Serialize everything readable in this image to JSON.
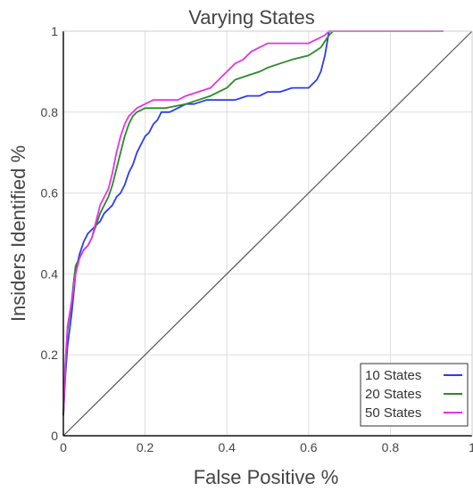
{
  "chart_data": {
    "type": "line",
    "title": "Varying States",
    "xlabel": "False Positive %",
    "ylabel": "Insiders Identified %",
    "xlim": [
      0,
      1
    ],
    "ylim": [
      0,
      1
    ],
    "xticks": [
      0,
      0.2,
      0.4,
      0.6,
      0.8,
      1
    ],
    "yticks": [
      0,
      0.2,
      0.4,
      0.6,
      0.8,
      1
    ],
    "xtick_labels": [
      "0",
      "0.2",
      "0.4",
      "0.6",
      "0.8",
      "1"
    ],
    "ytick_labels": [
      "0",
      "0.2",
      "0.4",
      "0.6",
      "0.8",
      "1"
    ],
    "grid": true,
    "legend_position": "bottom-right",
    "diagonal_reference": {
      "x": [
        0,
        1
      ],
      "y": [
        0,
        1
      ],
      "color": "#555555"
    },
    "series": [
      {
        "name": "10 States",
        "color": "#2b3ee6",
        "x": [
          0,
          0.005,
          0.01,
          0.02,
          0.025,
          0.03,
          0.035,
          0.04,
          0.05,
          0.06,
          0.07,
          0.08,
          0.09,
          0.1,
          0.11,
          0.12,
          0.13,
          0.14,
          0.15,
          0.16,
          0.17,
          0.18,
          0.19,
          0.2,
          0.21,
          0.22,
          0.23,
          0.24,
          0.26,
          0.28,
          0.3,
          0.32,
          0.35,
          0.38,
          0.4,
          0.42,
          0.45,
          0.48,
          0.5,
          0.53,
          0.56,
          0.6,
          0.62,
          0.63,
          0.64,
          0.645,
          0.65,
          0.66,
          0.7,
          0.8,
          0.93
        ],
        "y": [
          0.05,
          0.15,
          0.22,
          0.3,
          0.35,
          0.4,
          0.43,
          0.45,
          0.48,
          0.5,
          0.51,
          0.52,
          0.53,
          0.55,
          0.56,
          0.57,
          0.59,
          0.6,
          0.62,
          0.65,
          0.67,
          0.7,
          0.72,
          0.74,
          0.75,
          0.77,
          0.78,
          0.8,
          0.8,
          0.81,
          0.82,
          0.82,
          0.83,
          0.83,
          0.83,
          0.83,
          0.84,
          0.84,
          0.85,
          0.85,
          0.86,
          0.86,
          0.88,
          0.9,
          0.94,
          0.97,
          1.0,
          1.0,
          1.0,
          1.0,
          1.0
        ]
      },
      {
        "name": "20 States",
        "color": "#2a8a2a",
        "x": [
          0,
          0.005,
          0.01,
          0.02,
          0.025,
          0.03,
          0.04,
          0.05,
          0.06,
          0.07,
          0.08,
          0.09,
          0.1,
          0.11,
          0.12,
          0.13,
          0.14,
          0.15,
          0.16,
          0.17,
          0.18,
          0.2,
          0.22,
          0.25,
          0.3,
          0.33,
          0.36,
          0.38,
          0.4,
          0.42,
          0.45,
          0.48,
          0.5,
          0.53,
          0.56,
          0.6,
          0.63,
          0.65,
          0.66,
          0.7,
          0.8,
          0.93
        ],
        "y": [
          0.05,
          0.18,
          0.26,
          0.33,
          0.38,
          0.42,
          0.44,
          0.46,
          0.47,
          0.49,
          0.52,
          0.55,
          0.57,
          0.59,
          0.62,
          0.66,
          0.7,
          0.74,
          0.77,
          0.79,
          0.8,
          0.81,
          0.81,
          0.81,
          0.82,
          0.83,
          0.84,
          0.85,
          0.86,
          0.88,
          0.89,
          0.9,
          0.91,
          0.92,
          0.93,
          0.94,
          0.96,
          0.99,
          1.0,
          1.0,
          1.0,
          1.0
        ]
      },
      {
        "name": "50 States",
        "color": "#e632e6",
        "x": [
          0,
          0.005,
          0.01,
          0.02,
          0.03,
          0.04,
          0.05,
          0.06,
          0.07,
          0.08,
          0.09,
          0.1,
          0.11,
          0.12,
          0.13,
          0.14,
          0.15,
          0.16,
          0.17,
          0.18,
          0.2,
          0.22,
          0.25,
          0.28,
          0.3,
          0.33,
          0.36,
          0.38,
          0.4,
          0.42,
          0.44,
          0.46,
          0.48,
          0.5,
          0.55,
          0.6,
          0.62,
          0.64,
          0.65,
          0.66,
          0.7,
          0.8,
          0.93
        ],
        "y": [
          0.05,
          0.18,
          0.27,
          0.33,
          0.4,
          0.44,
          0.46,
          0.47,
          0.49,
          0.53,
          0.57,
          0.59,
          0.61,
          0.65,
          0.7,
          0.74,
          0.77,
          0.79,
          0.8,
          0.81,
          0.82,
          0.83,
          0.83,
          0.83,
          0.84,
          0.85,
          0.86,
          0.88,
          0.9,
          0.92,
          0.93,
          0.95,
          0.96,
          0.97,
          0.97,
          0.97,
          0.98,
          0.99,
          1.0,
          1.0,
          1.0,
          1.0,
          1.0
        ]
      }
    ]
  }
}
